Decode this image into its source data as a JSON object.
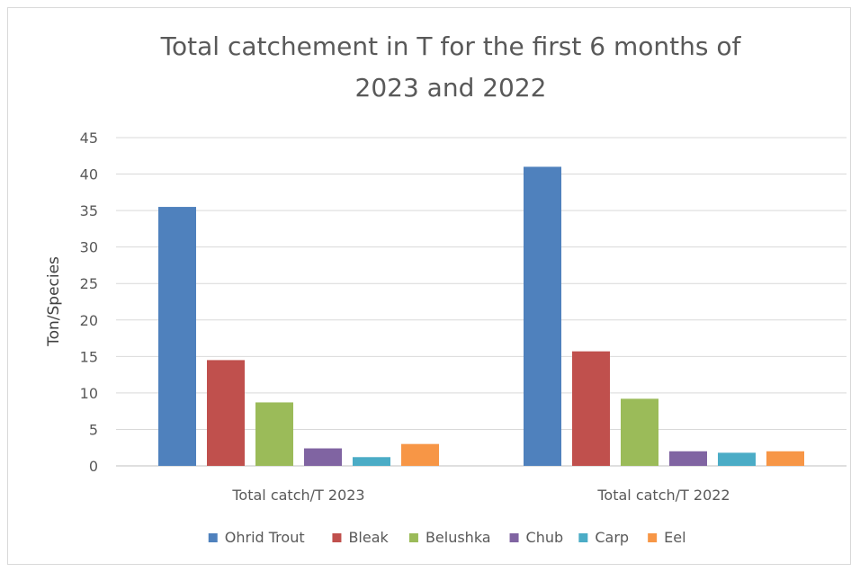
{
  "chart_data": {
    "type": "bar",
    "title": "Total catchement in T for the first 6 months of 2023 and 2022",
    "title_lines": [
      "Total catchement in T for the first 6 months of",
      "2023 and 2022"
    ],
    "xlabel": "",
    "ylabel": "Ton/Species",
    "ylim": [
      0,
      45
    ],
    "yticks": [
      0,
      5,
      10,
      15,
      20,
      25,
      30,
      35,
      40,
      45
    ],
    "grid": true,
    "legend_position": "bottom",
    "categories": [
      "Total catch/T 2023",
      "Total catch/T 2022"
    ],
    "series": [
      {
        "name": "Ohrid Trout",
        "color": "#4f81bd",
        "values": [
          35.5,
          41
        ]
      },
      {
        "name": "Bleak",
        "color": "#c0504d",
        "values": [
          14.5,
          15.7
        ]
      },
      {
        "name": "Belushka",
        "color": "#9bbb59",
        "values": [
          8.7,
          9.2
        ]
      },
      {
        "name": "Chub",
        "color": "#8064a2",
        "values": [
          2.4,
          2.0
        ]
      },
      {
        "name": "Carp",
        "color": "#4bacc6",
        "values": [
          1.2,
          1.8
        ]
      },
      {
        "name": "Eel",
        "color": "#f79646",
        "values": [
          3.0,
          2.0
        ]
      }
    ]
  }
}
